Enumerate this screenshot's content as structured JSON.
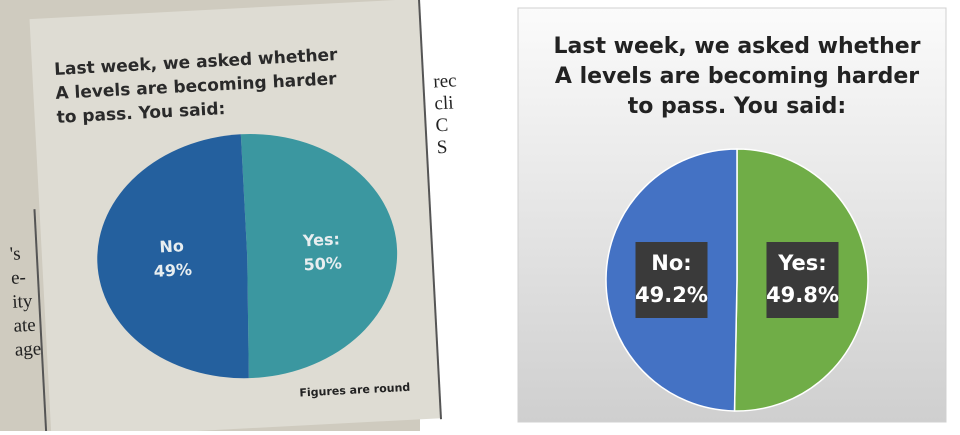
{
  "chart_data": [
    {
      "type": "pie",
      "title_lines": [
        "Last week, we asked whether",
        "A levels are becoming harder",
        "to pass. You said:"
      ],
      "categories": [
        "Yes:",
        "No"
      ],
      "values": [
        50,
        49
      ],
      "value_labels": [
        "50%",
        "49%"
      ],
      "colors": [
        "#3b97a0",
        "#24609e"
      ],
      "footnote": "Figures are round"
    },
    {
      "type": "pie",
      "title_lines": [
        "Last week, we asked whether",
        "A levels are becoming harder",
        "to pass. You said:"
      ],
      "categories": [
        "Yes:",
        "No:"
      ],
      "values": [
        49.8,
        49.2
      ],
      "value_labels": [
        "49.8%",
        "49.2%"
      ],
      "colors": [
        "#70ad47",
        "#4472c4"
      ]
    }
  ],
  "newspaper_fragments": {
    "right": [
      "rec",
      "cli",
      "C",
      "S"
    ],
    "left": [
      "'s",
      "e-",
      "ity",
      "ate",
      "age"
    ]
  }
}
